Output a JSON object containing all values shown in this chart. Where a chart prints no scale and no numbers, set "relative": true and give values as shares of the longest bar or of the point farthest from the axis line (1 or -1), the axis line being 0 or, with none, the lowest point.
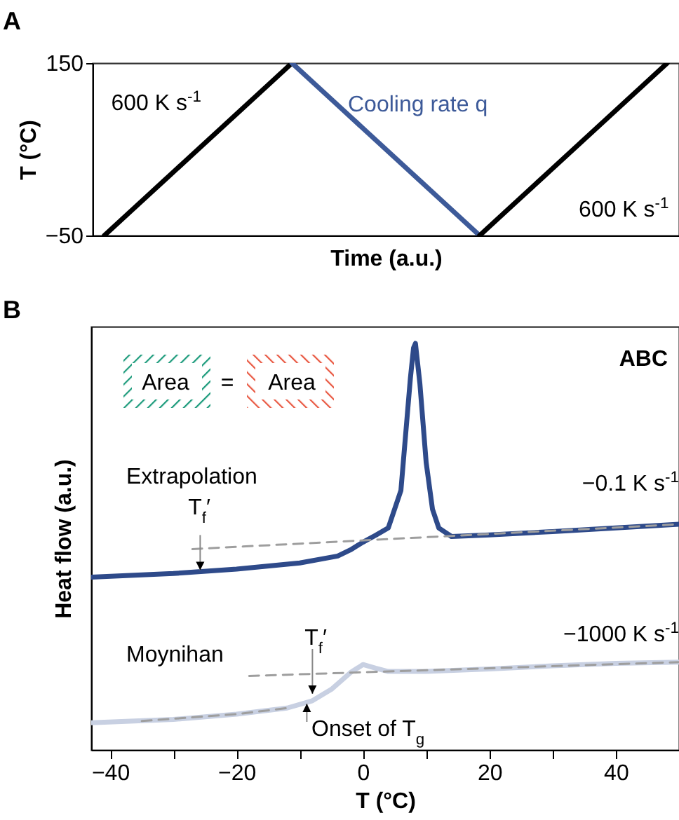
{
  "chart_data": [
    {
      "type": "line",
      "title": "A",
      "xlabel": "Time (a.u.)",
      "ylabel": "T (°C)",
      "categories": [
        null,
        null,
        null,
        null,
        null,
        null,
        null,
        null,
        null,
        null,
        null,
        null,
        null,
        null,
        null,
        null,
        null,
        null,
        null,
        null,
        null,
        null,
        null,
        null,
        null
      ],
      "series": [
        {
          "name": "600 K s$^{-1}$",
          "color": "#000000",
          "values": [
            -50,
            -25,
            0,
            25,
            50,
            75,
            100,
            125,
            150,
            null,
            null,
            null,
            null,
            null,
            null,
            null,
            null,
            null,
            null,
            null,
            null,
            null,
            null,
            null,
            null
          ]
        },
        {
          "name": "Cooling rate q",
          "color": "#3d5a99",
          "values": [
            null,
            null,
            null,
            null,
            null,
            null,
            null,
            null,
            150,
            125,
            100,
            75,
            50,
            25,
            0,
            -25,
            -50,
            null,
            null,
            null,
            null,
            null,
            null,
            null,
            null
          ]
        },
        {
          "name": "600 K s$^{-1}$",
          "color": "#000000",
          "values": [
            null,
            null,
            null,
            null,
            null,
            null,
            null,
            null,
            null,
            null,
            null,
            null,
            null,
            null,
            null,
            null,
            -50,
            -25,
            0,
            25,
            50,
            75,
            100,
            125,
            150
          ]
        }
      ],
      "ylim": [
        -50,
        150
      ],
      "yticks": [
        -50,
        150
      ],
      "grid": false,
      "tick_labels": "y"
    },
    {
      "type": "line",
      "title": "B",
      "xlabel": "T (°C)",
      "ylabel": "Heat flow (a.u.)",
      "relative": true,
      "xlim": [
        -43,
        50
      ],
      "xticks": [
        -40,
        {
          "value": -30,
          "label": null
        },
        -20,
        {
          "value": -10,
          "label": null
        },
        0,
        {
          "value": 10,
          "label": null
        },
        20,
        {
          "value": 30,
          "label": null
        },
        40
      ],
      "series": [
        {
          "name": "−0.1 K s$^{-1}$",
          "color": "#2e4a8a",
          "x": [
            -43,
            -30,
            -20,
            -10,
            -4,
            -2,
            0,
            2,
            4,
            6,
            7,
            7.5,
            8,
            8.3,
            9,
            10,
            11,
            12,
            14,
            20,
            30,
            40,
            50
          ],
          "values": [
            0.425,
            0.434,
            0.445,
            0.46,
            0.477,
            0.492,
            0.511,
            0.528,
            0.546,
            0.638,
            0.822,
            0.914,
            0.989,
            1,
            0.902,
            0.707,
            0.592,
            0.546,
            0.525,
            0.529,
            0.537,
            0.546,
            0.555
          ]
        },
        {
          "name": "−1000 K s$^{-1}$",
          "color": "#c8d0e2",
          "x": [
            -43,
            -30,
            -20,
            -12,
            -8,
            -5,
            -2,
            0,
            2,
            4,
            10,
            20,
            30,
            40,
            50
          ],
          "values": [
            0.067,
            0.075,
            0.088,
            0.103,
            0.121,
            0.149,
            0.19,
            0.21,
            0.201,
            0.193,
            0.193,
            0.199,
            0.207,
            0.213,
            0.216
          ]
        },
        {
          "color": "#9e9e9e",
          "line_style": "dashed",
          "x": [
            -27,
            50
          ],
          "values": [
            0.494,
            0.555
          ]
        },
        {
          "color": "#9e9e9e",
          "line_style": "dashed",
          "x": [
            -35,
            -20,
            -12
          ],
          "values": [
            0.071,
            0.088,
            0.103
          ]
        },
        {
          "color": "#9e9e9e",
          "line_style": "dashed",
          "x": [
            -18,
            50
          ],
          "values": [
            0.182,
            0.216
          ]
        }
      ],
      "annotations": [
        "ABC",
        "Area",
        "=",
        "Area",
        "Extrapolation",
        "T$_{f}$′",
        "Moynihan",
        "T$_{f}$′",
        "Onset of T$_{g}$"
      ],
      "grid": false,
      "tick_labels": "x"
    }
  ]
}
